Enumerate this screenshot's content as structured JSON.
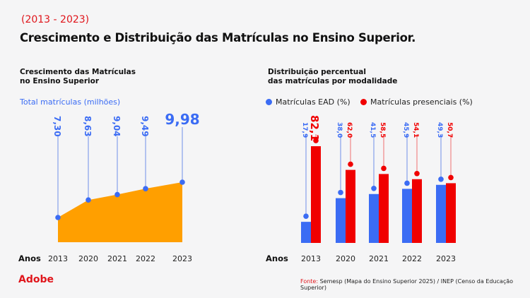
{
  "header": {
    "period": "(2013 - 2023)",
    "title": "Crescimento e Distribuição das Matrículas no Ensino Superior."
  },
  "footer": {
    "logo": "Adobe",
    "source_label": "Fonte:",
    "source_text": "Semesp (Mapa do Ensino Superior 2025) / INEP (Censo da Educação Superior)"
  },
  "colors": {
    "area": "#ff9f00",
    "blue": "#3b6cf4",
    "red": "#f00000"
  },
  "chart_data": [
    {
      "type": "area",
      "title_lines": [
        "Crescimento das Matrículas",
        "no Ensino Superior"
      ],
      "series_label": "Total matrículas (milhões)",
      "xlabel": "Anos",
      "categories": [
        "2013",
        "2020",
        "2021",
        "2022",
        "2023"
      ],
      "values": [
        7.3,
        8.63,
        9.04,
        9.49,
        9.98
      ],
      "value_labels": [
        "7,30",
        "8,63",
        "9,04",
        "9,49",
        "9,98"
      ],
      "grid": false
    },
    {
      "type": "bar",
      "title_lines": [
        "Distribuição percentual",
        "das matrículas por modalidade"
      ],
      "xlabel": "Anos",
      "categories": [
        "2013",
        "2020",
        "2021",
        "2022",
        "2023"
      ],
      "legend_position": "top",
      "series": [
        {
          "name": "Matrículas EAD (%)",
          "values": [
            17.9,
            38.0,
            41.5,
            45.9,
            49.3
          ],
          "labels": [
            "17,9",
            "38,0",
            "41,5",
            "45,9",
            "49,3"
          ]
        },
        {
          "name": "Matrículas presenciais (%)",
          "values": [
            82.1,
            62.0,
            58.5,
            54.1,
            50.7
          ],
          "labels": [
            "82,1",
            "62,0",
            "58,5",
            "54,1",
            "50,7"
          ]
        }
      ],
      "grid": false
    }
  ]
}
